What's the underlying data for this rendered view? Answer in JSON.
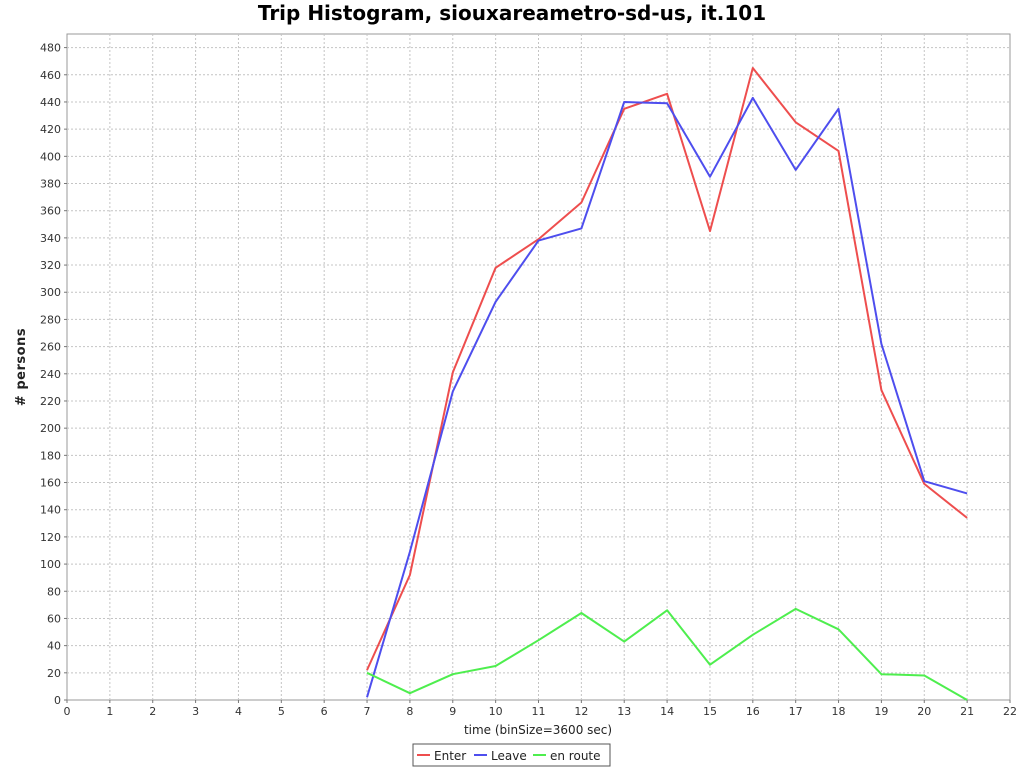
{
  "chart_data": {
    "type": "line",
    "title": "Trip Histogram, siouxareametro-sd-us, it.101",
    "xlabel": "time (binSize=3600 sec)",
    "ylabel": "# persons",
    "xlim": [
      0,
      22
    ],
    "ylim": [
      0,
      490
    ],
    "x_ticks": [
      0,
      1,
      2,
      3,
      4,
      5,
      6,
      7,
      8,
      9,
      10,
      11,
      12,
      13,
      14,
      15,
      16,
      17,
      18,
      19,
      20,
      21,
      22
    ],
    "y_ticks": [
      0,
      20,
      40,
      60,
      80,
      100,
      120,
      140,
      160,
      180,
      200,
      220,
      240,
      260,
      280,
      300,
      320,
      340,
      360,
      380,
      400,
      420,
      440,
      460,
      480
    ],
    "grid": true,
    "legend_position": "bottom-center",
    "x": [
      7,
      8,
      9,
      10,
      11,
      12,
      13,
      14,
      15,
      16,
      17,
      18,
      19,
      20,
      21
    ],
    "series": [
      {
        "name": "Enter",
        "color": "#ee4e4e",
        "values": [
          22,
          92,
          241,
          318,
          339,
          366,
          435,
          446,
          345,
          465,
          425,
          404,
          228,
          159,
          134
        ]
      },
      {
        "name": "Leave",
        "color": "#4e4eee",
        "values": [
          2,
          109,
          227,
          293,
          338,
          347,
          440,
          439,
          385,
          443,
          390,
          435,
          262,
          161,
          152
        ]
      },
      {
        "name": "en route",
        "color": "#4eee4e",
        "values": [
          20,
          5,
          19,
          25,
          44,
          64,
          43,
          66,
          26,
          48,
          67,
          52,
          19,
          18,
          0
        ]
      }
    ]
  }
}
